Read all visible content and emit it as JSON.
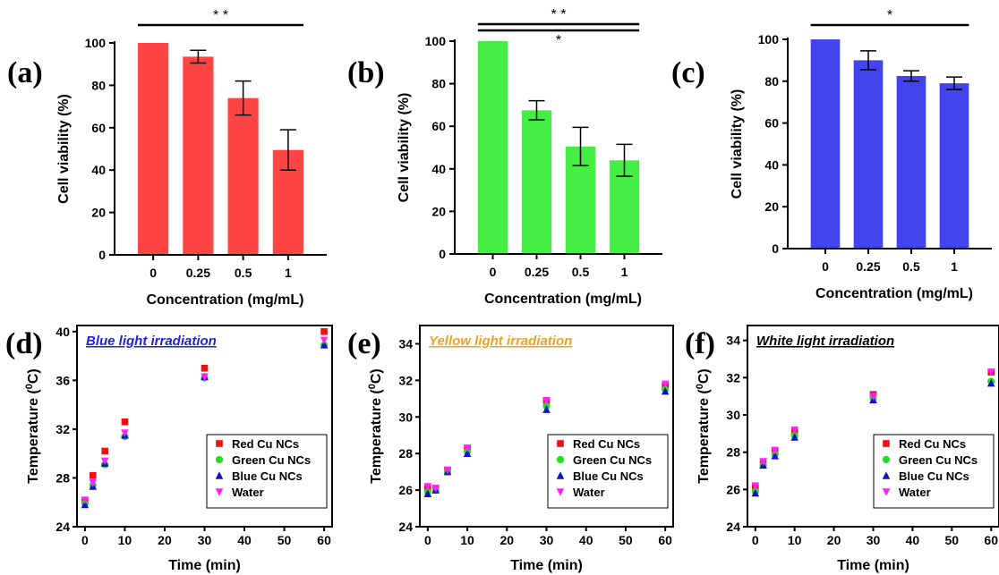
{
  "chart_data": [
    {
      "panel": "(a)",
      "type": "bar",
      "color": "#ff4444",
      "categories": [
        "0",
        "0.25",
        "0.5",
        "1"
      ],
      "values": [
        100,
        93.5,
        74,
        49.5
      ],
      "errors": [
        0,
        3,
        8,
        9.5
      ],
      "xlabel": "Concentration (mg/mL)",
      "ylabel": "Cell viability (%)",
      "ylim": [
        0,
        100
      ],
      "yticks": [
        0,
        20,
        40,
        60,
        80,
        100
      ],
      "significance": [
        {
          "label": "* *",
          "from": 0,
          "to": 3
        }
      ]
    },
    {
      "panel": "(b)",
      "type": "bar",
      "color": "#44ee44",
      "categories": [
        "0",
        "0.25",
        "0.5",
        "1"
      ],
      "values": [
        100,
        67.5,
        50.5,
        44
      ],
      "errors": [
        0,
        4.5,
        9,
        7.5
      ],
      "xlabel": "Concentration (mg/mL)",
      "ylabel": "Cell viability (%)",
      "ylim": [
        0,
        100
      ],
      "yticks": [
        0,
        20,
        40,
        60,
        80,
        100
      ],
      "significance": [
        {
          "label": "* *",
          "from": 0,
          "to": 3
        },
        {
          "label": "*",
          "from": 0,
          "to": 3
        }
      ]
    },
    {
      "panel": "(c)",
      "type": "bar",
      "color": "#4444ee",
      "categories": [
        "0",
        "0.25",
        "0.5",
        "1"
      ],
      "values": [
        100,
        90,
        82.5,
        79
      ],
      "errors": [
        0,
        4.5,
        2.5,
        3
      ],
      "xlabel": "Concentration (mg/mL)",
      "ylabel": "Cell viability (%)",
      "ylim": [
        0,
        100
      ],
      "yticks": [
        0,
        20,
        40,
        60,
        80,
        100
      ],
      "significance": [
        {
          "label": "*",
          "from": 0,
          "to": 3
        }
      ]
    },
    {
      "panel": "(d)",
      "type": "scatter",
      "title": "Blue light irradiation",
      "title_color": "#2222dd",
      "xlabel": "Time (min)",
      "ylabel": "Temperature (0C)",
      "xlim": [
        -2,
        62
      ],
      "ylim": [
        24,
        40.5
      ],
      "xticks": [
        0,
        10,
        20,
        30,
        40,
        50,
        60
      ],
      "yticks": [
        24,
        28,
        32,
        36,
        40
      ],
      "x": [
        0,
        2,
        5,
        10,
        30,
        60
      ],
      "series": [
        {
          "name": "Red Cu NCs",
          "color": "#ee1111",
          "marker": "square",
          "values": [
            26.1,
            28.2,
            30.2,
            32.6,
            37.0,
            40.0
          ]
        },
        {
          "name": "Green Cu NCs",
          "color": "#22dd22",
          "marker": "circle",
          "values": [
            25.9,
            27.4,
            29.1,
            31.4,
            36.2,
            38.9
          ]
        },
        {
          "name": "Blue Cu NCs",
          "color": "#1111cc",
          "marker": "triangle-up",
          "values": [
            25.8,
            27.3,
            29.2,
            31.5,
            36.3,
            38.9
          ]
        },
        {
          "name": "Water",
          "color": "#ff22ff",
          "marker": "triangle-down",
          "values": [
            26.2,
            27.6,
            29.4,
            31.7,
            36.3,
            39.3
          ]
        }
      ]
    },
    {
      "panel": "(e)",
      "type": "scatter",
      "title": "Yellow light irradiation",
      "title_color": "#f0a020",
      "xlabel": "Time (min)",
      "ylabel": "Temperature (0C)",
      "xlim": [
        -2,
        62
      ],
      "ylim": [
        24,
        35
      ],
      "xticks": [
        0,
        10,
        20,
        30,
        40,
        50,
        60
      ],
      "yticks": [
        24,
        26,
        28,
        30,
        32,
        34
      ],
      "x": [
        0,
        2,
        5,
        10,
        30,
        60
      ],
      "series": [
        {
          "name": "Red Cu NCs",
          "color": "#ee1111",
          "marker": "square",
          "values": [
            26.1,
            26.1,
            27.1,
            28.3,
            30.9,
            31.7
          ]
        },
        {
          "name": "Green Cu NCs",
          "color": "#22dd22",
          "marker": "circle",
          "values": [
            25.9,
            26.0,
            27.0,
            28.1,
            30.6,
            31.5
          ]
        },
        {
          "name": "Blue Cu NCs",
          "color": "#1111cc",
          "marker": "triangle-up",
          "values": [
            25.8,
            26.0,
            27.0,
            28.0,
            30.4,
            31.4
          ]
        },
        {
          "name": "Water",
          "color": "#ff22ff",
          "marker": "triangle-down",
          "values": [
            26.2,
            26.1,
            27.1,
            28.3,
            30.9,
            31.8
          ]
        }
      ]
    },
    {
      "panel": "(f)",
      "type": "scatter",
      "title": "White light irradiation",
      "title_color": "#000000",
      "xlabel": "Time (min)",
      "ylabel": "Temperature (0C)",
      "xlim": [
        -2,
        62
      ],
      "ylim": [
        24,
        34.8
      ],
      "xticks": [
        0,
        10,
        20,
        30,
        40,
        50,
        60
      ],
      "yticks": [
        24,
        26,
        28,
        30,
        32,
        34
      ],
      "x": [
        0,
        2,
        5,
        10,
        30,
        60
      ],
      "series": [
        {
          "name": "Red Cu NCs",
          "color": "#ee1111",
          "marker": "square",
          "values": [
            26.1,
            27.4,
            28.1,
            29.1,
            31.1,
            32.3
          ]
        },
        {
          "name": "Green Cu NCs",
          "color": "#22dd22",
          "marker": "circle",
          "values": [
            25.9,
            27.3,
            27.9,
            28.9,
            30.9,
            31.8
          ]
        },
        {
          "name": "Blue Cu NCs",
          "color": "#1111cc",
          "marker": "triangle-up",
          "values": [
            25.8,
            27.3,
            27.8,
            28.8,
            30.8,
            31.7
          ]
        },
        {
          "name": "Water",
          "color": "#ff22ff",
          "marker": "triangle-down",
          "values": [
            26.2,
            27.5,
            28.1,
            29.2,
            31.0,
            32.3
          ]
        }
      ]
    }
  ]
}
